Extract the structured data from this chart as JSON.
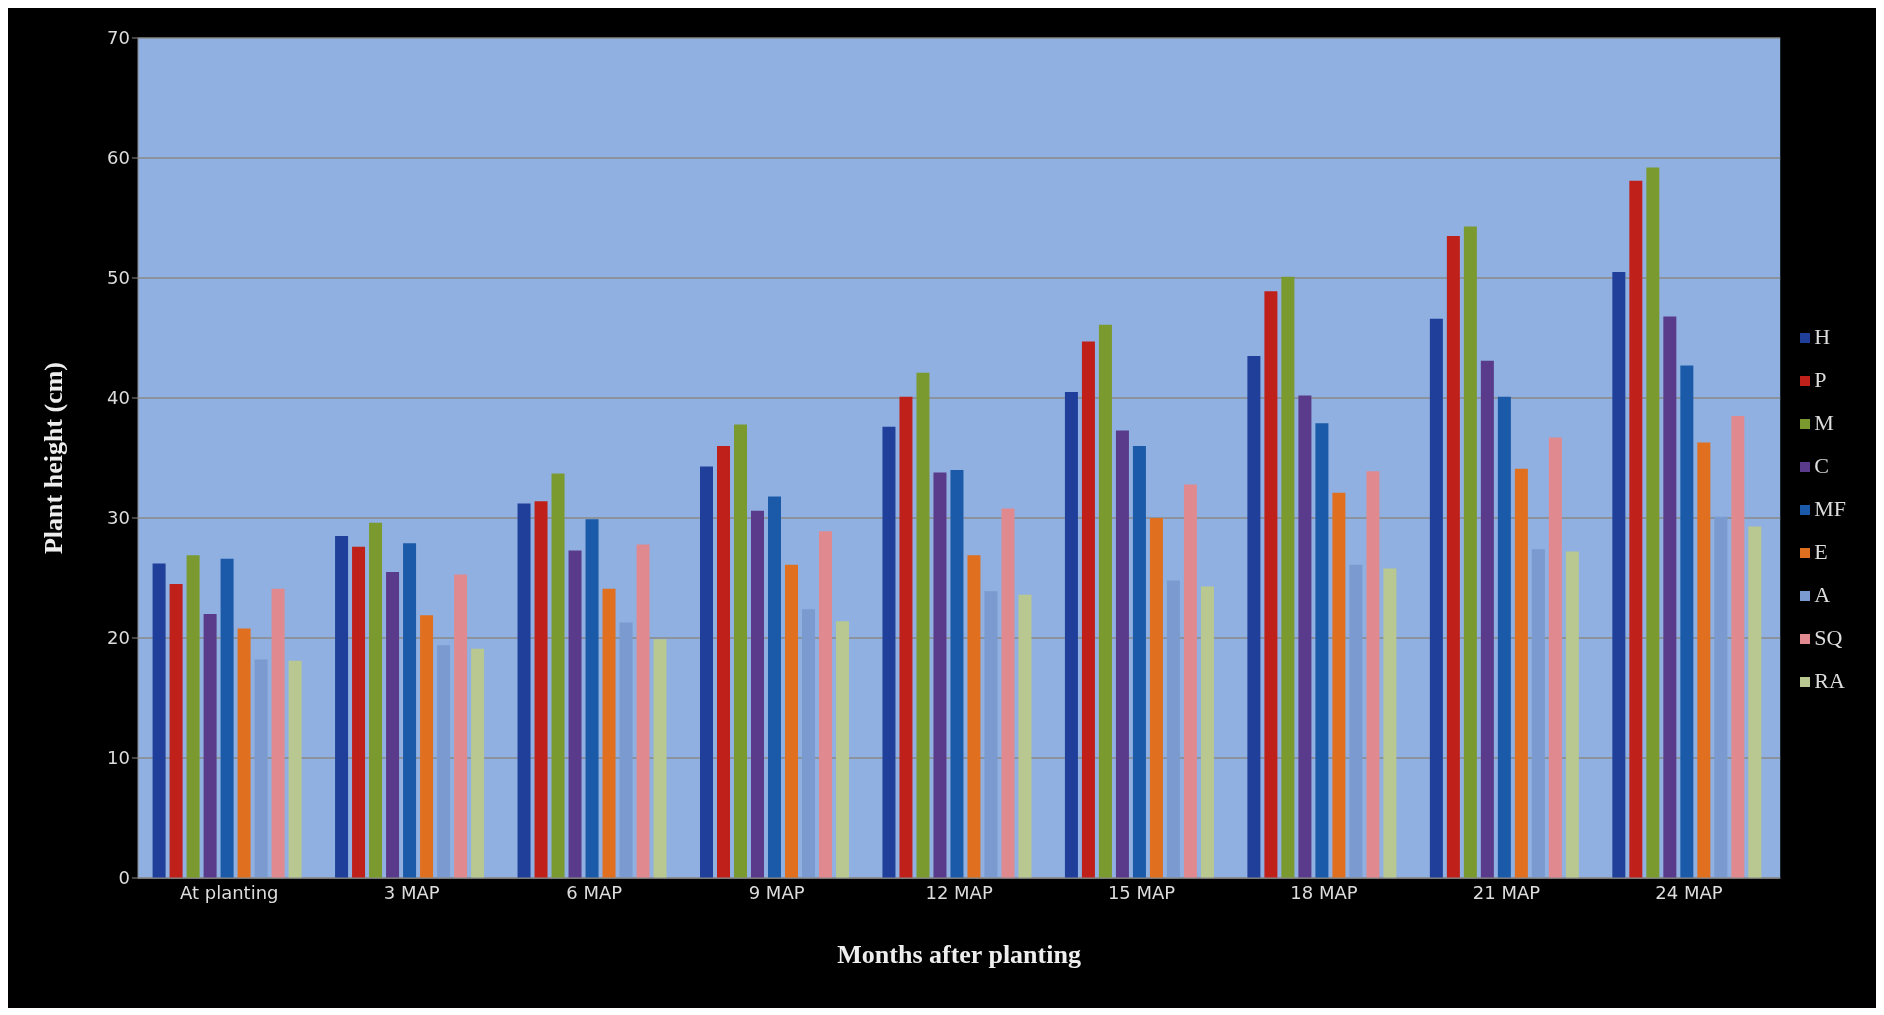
{
  "chart_data": {
    "type": "bar",
    "xlabel": "Months after planting",
    "ylabel": "Plant height (cm)",
    "categories": [
      "At planting",
      "3 MAP",
      "6 MAP",
      "9 MAP",
      "12 MAP",
      "15 MAP",
      "18 MAP",
      "21 MAP",
      "24 MAP"
    ],
    "series": [
      {
        "name": "H",
        "color": "#1f3f9a",
        "values": [
          26.2,
          28.5,
          31.2,
          34.3,
          37.6,
          40.5,
          43.5,
          46.6,
          50.5
        ]
      },
      {
        "name": "P",
        "color": "#c0201a",
        "values": [
          24.5,
          27.6,
          31.4,
          36.0,
          40.1,
          44.7,
          48.9,
          53.5,
          58.1
        ]
      },
      {
        "name": "M",
        "color": "#7a9a30",
        "values": [
          26.9,
          29.6,
          33.7,
          37.8,
          42.1,
          46.1,
          50.1,
          54.3,
          59.2
        ]
      },
      {
        "name": "C",
        "color": "#5a3a8a",
        "values": [
          22.0,
          25.5,
          27.3,
          30.6,
          33.8,
          37.3,
          40.2,
          43.1,
          46.8
        ]
      },
      {
        "name": "MF",
        "color": "#1a5aa8",
        "values": [
          26.6,
          27.9,
          29.9,
          31.8,
          34.0,
          36.0,
          37.9,
          40.1,
          42.7
        ]
      },
      {
        "name": "E",
        "color": "#e07020",
        "values": [
          20.8,
          21.9,
          24.1,
          26.1,
          26.9,
          30.0,
          32.1,
          34.1,
          36.3
        ]
      },
      {
        "name": "A",
        "color": "#7a9ad0",
        "values": [
          18.2,
          19.4,
          21.3,
          22.4,
          23.9,
          24.8,
          26.1,
          27.4,
          30.1
        ]
      },
      {
        "name": "SQ",
        "color": "#e08a90",
        "values": [
          24.1,
          25.3,
          27.8,
          28.9,
          30.8,
          32.8,
          33.9,
          36.7,
          38.5
        ]
      },
      {
        "name": "RA",
        "color": "#b8c890",
        "values": [
          18.1,
          19.1,
          19.9,
          21.4,
          23.6,
          24.3,
          25.8,
          27.2,
          29.3
        ]
      }
    ],
    "ylim": [
      0,
      70
    ],
    "yticks": [
      0,
      10,
      20,
      30,
      40,
      50,
      60,
      70
    ],
    "grid": "y",
    "legend": "right"
  }
}
